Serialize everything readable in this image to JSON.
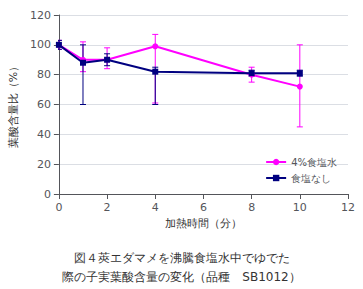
{
  "chart_data": {
    "type": "line",
    "xlabel": "加熱時間（分）",
    "ylabel": "葉酸含量比（%）",
    "xlim": [
      0,
      12
    ],
    "ylim": [
      0,
      120
    ],
    "xticks": [
      0,
      2,
      4,
      6,
      8,
      10,
      12
    ],
    "yticks": [
      0,
      20,
      40,
      60,
      80,
      100,
      120
    ],
    "grid": true,
    "legend": "lower right",
    "annotations": [
      "図４莢エダマメを沸騰食塩水中でゆでた",
      "際の子実葉酸含量の変化（品種　SB1012）"
    ],
    "series": [
      {
        "name": "4%食塩水",
        "color": "#FF00FF",
        "marker": "circle",
        "x": [
          0,
          1,
          2,
          4,
          8,
          10
        ],
        "values": [
          100,
          90,
          90,
          99,
          80,
          72
        ],
        "yerr_lower": [
          3,
          8,
          6,
          38,
          5,
          27
        ],
        "yerr_upper": [
          3,
          12,
          8,
          8,
          5,
          28
        ]
      },
      {
        "name": "食塩なし",
        "color": "#000080",
        "marker": "square",
        "x": [
          0,
          1,
          2,
          4,
          8,
          10
        ],
        "values": [
          100,
          88,
          90,
          82,
          81,
          81
        ],
        "yerr_lower": [
          3,
          28,
          4,
          22,
          2,
          2
        ],
        "yerr_upper": [
          3,
          12,
          4,
          3,
          2,
          2
        ]
      }
    ]
  }
}
